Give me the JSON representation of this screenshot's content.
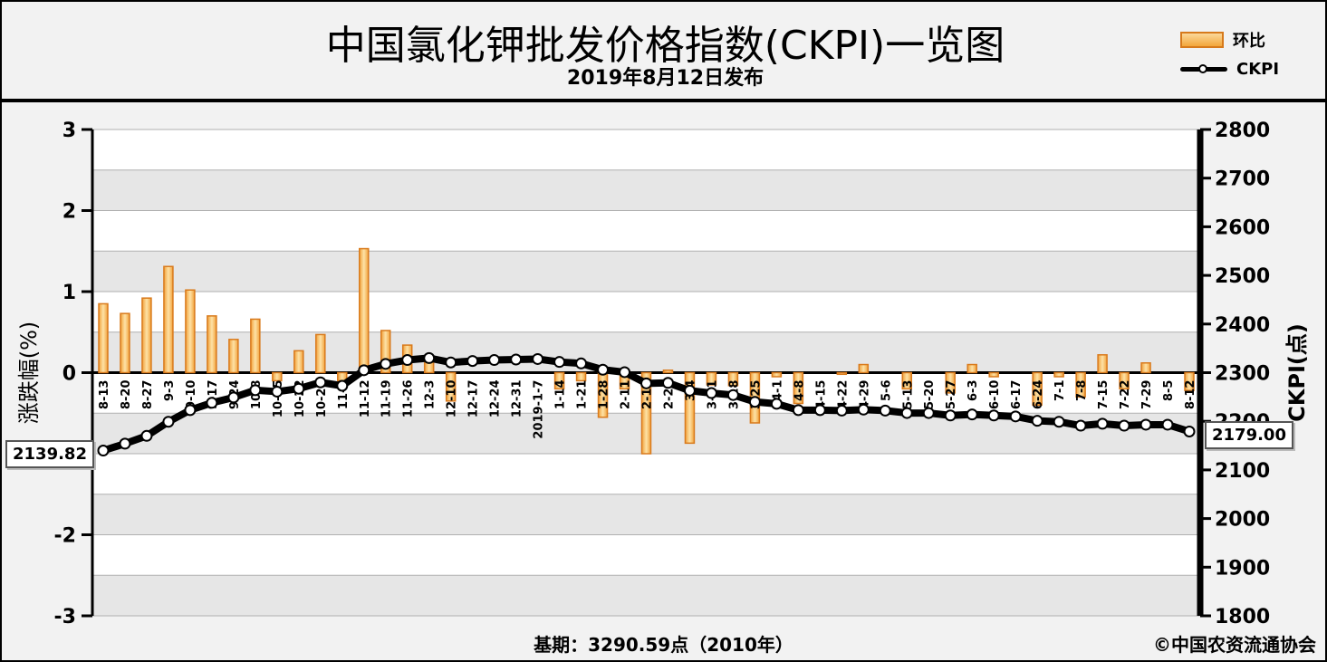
{
  "title": "中国氯化钾批发价格指数(CKPI)一览图",
  "subtitle": "2019年8月12日发布",
  "legend": {
    "bar_label": "环比",
    "line_label": "CKPI"
  },
  "footer": {
    "base": "基期：3290.59点（2010年）",
    "credit": "©中国农资流通协会"
  },
  "callouts": {
    "first": "2139.82",
    "last": "2179.00"
  },
  "chart_data": {
    "type": "bar+line",
    "ylabel_left": "涨跌幅(%)",
    "ylabel_right": "CKPI(点)",
    "ylim_left": [
      -3,
      3
    ],
    "ylim_right": [
      1800,
      2800
    ],
    "left_ticks": [
      "3",
      "2",
      "1",
      "0",
      "-1",
      "-2",
      "-3"
    ],
    "right_ticks": [
      "2800",
      "2700",
      "2600",
      "2500",
      "2400",
      "2300",
      "2200",
      "2100",
      "2000",
      "1900",
      "1800"
    ],
    "categories": [
      "8-13",
      "8-20",
      "8-27",
      "9-3",
      "9-10",
      "9-17",
      "9-24",
      "10-8",
      "10-15",
      "10-22",
      "10-29",
      "11-5",
      "11-12",
      "11-19",
      "11-26",
      "12-3",
      "12-10",
      "12-17",
      "12-24",
      "12-31",
      "2019-1-7",
      "1-14",
      "1-21",
      "1-28",
      "2-11",
      "2-18",
      "2-25",
      "3-4",
      "3-11",
      "3-18",
      "3-25",
      "4-1",
      "4-8",
      "4-15",
      "4-22",
      "4-29",
      "5-6",
      "5-13",
      "5-20",
      "5-27",
      "6-3",
      "6-10",
      "6-17",
      "6-24",
      "7-1",
      "7-8",
      "7-15",
      "7-22",
      "7-29",
      "8-5",
      "8-12"
    ],
    "series": [
      {
        "name": "环比",
        "type": "bar",
        "values": [
          0.85,
          0.73,
          0.92,
          1.31,
          1.02,
          0.7,
          0.41,
          0.66,
          -0.1,
          0.27,
          0.47,
          -0.1,
          1.53,
          0.52,
          0.34,
          0.19,
          -0.35,
          0.0,
          0.0,
          0.0,
          0.0,
          -0.2,
          -0.1,
          -0.55,
          -0.2,
          -1.0,
          0.03,
          -0.87,
          -0.15,
          -0.16,
          -0.62,
          -0.05,
          -0.38,
          0.0,
          -0.02,
          0.1,
          0.0,
          -0.2,
          0.0,
          -0.25,
          0.1,
          -0.05,
          0.0,
          -0.4,
          -0.05,
          -0.3,
          0.22,
          -0.2,
          0.12,
          0.0,
          -0.22
        ]
      },
      {
        "name": "CKPI",
        "type": "line",
        "values": [
          2139.82,
          2154,
          2170,
          2199,
          2223,
          2238,
          2249,
          2264,
          2261,
          2267,
          2280,
          2273,
          2305,
          2318,
          2326,
          2330,
          2321,
          2324,
          2326,
          2327,
          2328,
          2322,
          2319,
          2306,
          2301,
          2278,
          2279,
          2263,
          2258,
          2254,
          2240,
          2236,
          2223,
          2223,
          2222,
          2224,
          2222,
          2217,
          2217,
          2212,
          2214,
          2212,
          2210,
          2201,
          2199,
          2191,
          2195,
          2191,
          2193,
          2193,
          2179.0
        ]
      }
    ]
  }
}
